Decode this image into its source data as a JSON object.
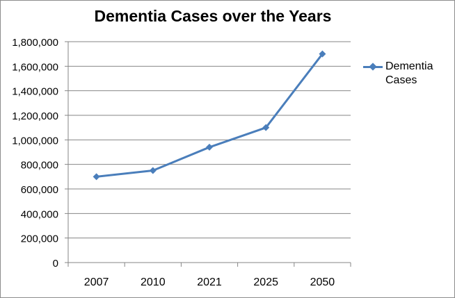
{
  "chart_data": {
    "type": "line",
    "title": "Dementia Cases over the Years",
    "xlabel": "",
    "ylabel": "",
    "categories": [
      "2007",
      "2010",
      "2021",
      "2025",
      "2050"
    ],
    "series": [
      {
        "name": "Dementia Cases",
        "color": "#4a7ebb",
        "marker": "diamond",
        "values": [
          700000,
          750000,
          940000,
          1100000,
          1700000
        ]
      }
    ],
    "ylim": [
      0,
      1800000
    ],
    "yticks": [
      0,
      200000,
      400000,
      600000,
      800000,
      1000000,
      1200000,
      1400000,
      1600000,
      1800000
    ],
    "ytick_labels": [
      "0",
      "200,000",
      "400,000",
      "600,000",
      "800,000",
      "1,000,000",
      "1,200,000",
      "1,400,000",
      "1,600,000",
      "1,800,000"
    ],
    "grid": true,
    "legend_position": "right"
  },
  "legend": {
    "label": "Dementia Cases"
  }
}
